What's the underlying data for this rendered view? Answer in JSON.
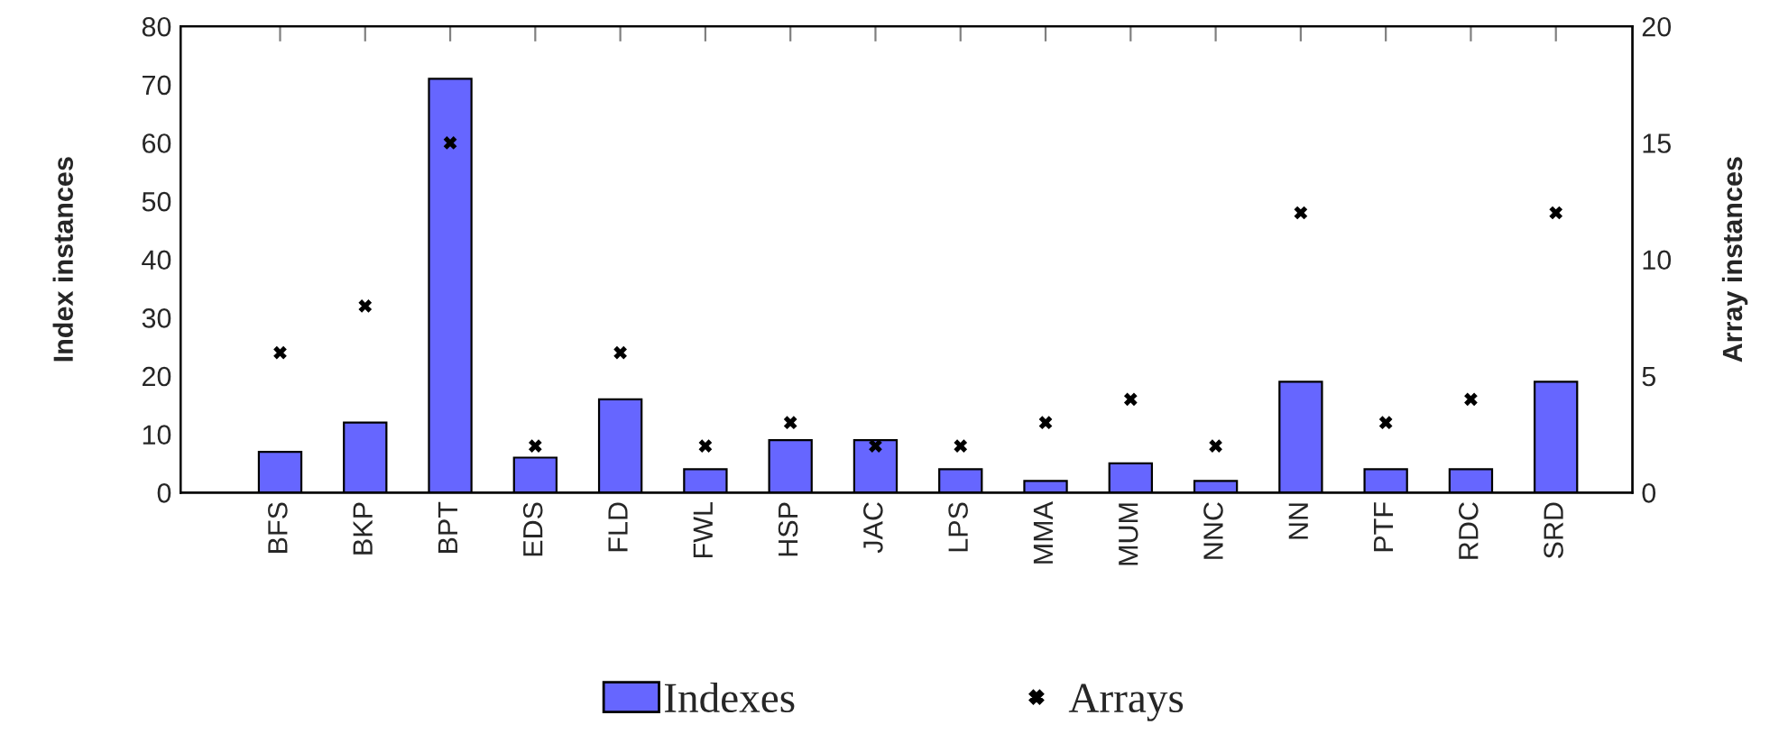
{
  "chart_data": {
    "type": "bar",
    "categories": [
      "BFS",
      "BKP",
      "BPT",
      "EDS",
      "FLD",
      "FWL",
      "HSP",
      "JAC",
      "LPS",
      "MMA",
      "MUM",
      "NNC",
      "NN",
      "PTF",
      "RDC",
      "SRD"
    ],
    "series": [
      {
        "name": "Indexes",
        "color": "#6666ff",
        "values": [
          7,
          12,
          71,
          6,
          16,
          4,
          9,
          9,
          4,
          2,
          5,
          2,
          19,
          4,
          4,
          19
        ]
      },
      {
        "name": "Arrays",
        "type": "scatter",
        "axis": "y2",
        "color": "#000000",
        "marker": "cross",
        "values": [
          6,
          8,
          15,
          2,
          6,
          2,
          3,
          2,
          2,
          3,
          4,
          2,
          12,
          3,
          4,
          12
        ]
      }
    ],
    "ylabel": "Index instances",
    "y2label": "Array instances",
    "ylim": [
      0,
      80
    ],
    "yticks": [
      0,
      10,
      20,
      30,
      40,
      50,
      60,
      70,
      80
    ],
    "y2lim": [
      0,
      20
    ],
    "y2ticks": [
      0,
      5,
      10,
      15,
      20
    ],
    "grid": false,
    "legend": "bottom"
  }
}
